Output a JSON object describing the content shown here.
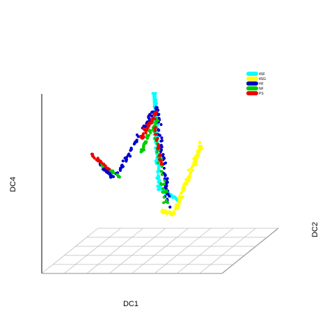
{
  "chart_data": {
    "type": "scatter",
    "subtype": "3d-scatter",
    "title": "",
    "xlabel": "DC1",
    "ylabel": "DC4",
    "zlabel": "DC2",
    "grid": true,
    "legend_position": "top-right",
    "legend": [
      {
        "name": "4SF",
        "color": "#00FFFF"
      },
      {
        "name": "4SG",
        "color": "#FFFF00"
      },
      {
        "name": "HF",
        "color": "#0000CC"
      },
      {
        "name": "NF",
        "color": "#00CC00"
      },
      {
        "name": "PS",
        "color": "#EE0000"
      }
    ],
    "series": [
      {
        "name": "4SF",
        "color": "#00FFFF",
        "segments": [
          {
            "from": [
              0.78,
              0.12
            ],
            "to": [
              0.6,
              0.22
            ],
            "n": 45,
            "spread": 0.018
          },
          {
            "from": [
              0.6,
              0.22
            ],
            "to": [
              0.56,
              0.95
            ],
            "n": 130,
            "spread": 0.025
          },
          {
            "from": [
              0.56,
              0.95
            ],
            "to": [
              0.58,
              0.55
            ],
            "n": 50,
            "spread": 0.022
          }
        ]
      },
      {
        "name": "4SG",
        "color": "#FFFF00",
        "segments": [
          {
            "from": [
              0.62,
              0.05
            ],
            "to": [
              0.72,
              0.02
            ],
            "n": 40,
            "spread": 0.02
          },
          {
            "from": [
              0.72,
              0.02
            ],
            "to": [
              0.96,
              0.55
            ],
            "n": 110,
            "spread": 0.025
          }
        ]
      },
      {
        "name": "HF",
        "color": "#0000CC",
        "segments": [
          {
            "from": [
              0.05,
              0.45
            ],
            "to": [
              0.2,
              0.3
            ],
            "n": 25,
            "spread": 0.02
          },
          {
            "from": [
              0.22,
              0.3
            ],
            "to": [
              0.58,
              0.85
            ],
            "n": 60,
            "spread": 0.03
          },
          {
            "from": [
              0.58,
              0.85
            ],
            "to": [
              0.68,
              0.08
            ],
            "n": 65,
            "spread": 0.025
          }
        ]
      },
      {
        "name": "NF",
        "color": "#00CC00",
        "segments": [
          {
            "from": [
              0.08,
              0.42
            ],
            "to": [
              0.28,
              0.3
            ],
            "n": 15,
            "spread": 0.02
          },
          {
            "from": [
              0.45,
              0.5
            ],
            "to": [
              0.58,
              0.75
            ],
            "n": 40,
            "spread": 0.03
          },
          {
            "from": [
              0.58,
              0.6
            ],
            "to": [
              0.66,
              0.12
            ],
            "n": 40,
            "spread": 0.03
          }
        ]
      },
      {
        "name": "PS",
        "color": "#EE0000",
        "segments": [
          {
            "from": [
              0.02,
              0.48
            ],
            "to": [
              0.18,
              0.36
            ],
            "n": 25,
            "spread": 0.015
          },
          {
            "from": [
              0.44,
              0.6
            ],
            "to": [
              0.58,
              0.8
            ],
            "n": 40,
            "spread": 0.025
          },
          {
            "from": [
              0.56,
              0.7
            ],
            "to": [
              0.62,
              0.4
            ],
            "n": 25,
            "spread": 0.02
          }
        ]
      }
    ]
  }
}
